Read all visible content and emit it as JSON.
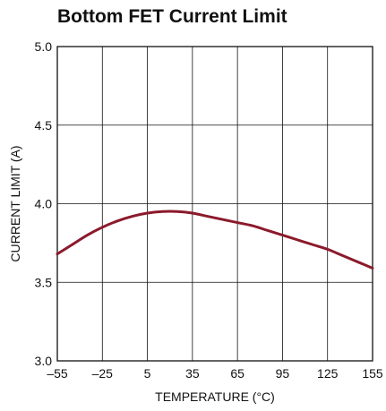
{
  "chart_data": {
    "type": "line",
    "title": "Bottom FET Current Limit",
    "xlabel": "TEMPERATURE (°C)",
    "ylabel": "CURRENT LIMIT (A)",
    "xlim": [
      -55,
      155
    ],
    "ylim": [
      3.0,
      5.0
    ],
    "xticks": [
      -55,
      -25,
      5,
      35,
      65,
      95,
      125,
      155
    ],
    "xtick_labels": [
      "–55",
      "–25",
      "5",
      "35",
      "65",
      "95",
      "125",
      "155"
    ],
    "yticks": [
      3.0,
      3.5,
      4.0,
      4.5,
      5.0
    ],
    "ytick_labels": [
      "3.0",
      "3.5",
      "4.0",
      "4.5",
      "5.0"
    ],
    "grid": true,
    "line_color": "#8b1a2b",
    "series": [
      {
        "x": [
          -55,
          -45,
          -35,
          -25,
          -15,
          -5,
          5,
          15,
          25,
          35,
          45,
          55,
          65,
          75,
          85,
          95,
          105,
          115,
          125,
          135,
          145,
          155
        ],
        "values": [
          3.68,
          3.74,
          3.8,
          3.85,
          3.89,
          3.92,
          3.94,
          3.95,
          3.95,
          3.94,
          3.92,
          3.9,
          3.88,
          3.86,
          3.83,
          3.8,
          3.77,
          3.74,
          3.71,
          3.67,
          3.63,
          3.59
        ]
      }
    ]
  }
}
